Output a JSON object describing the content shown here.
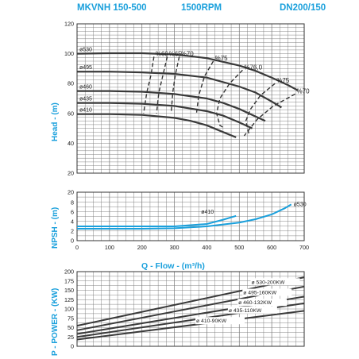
{
  "header": {
    "model": "MKVNH 150-500",
    "speed": "1500RPM",
    "size": "DN200/150"
  },
  "axis_titles": {
    "head": "Head - (m)",
    "npsh": "NPSH - (m)",
    "power": "P - POWER - (KW)",
    "flow": "Q - Flow - (m³/h)"
  },
  "colors": {
    "curve": "#3a3a3a",
    "npsh": "#1aa0dc",
    "title": "#1aa0dc",
    "grid": "#777777"
  },
  "chart_data": [
    {
      "type": "line",
      "panel": "head",
      "xlim": [
        0,
        700
      ],
      "ylim": [
        20,
        120
      ],
      "yticks": [
        20,
        40,
        60,
        80,
        100,
        120
      ],
      "grid": true,
      "series": [
        {
          "name": "ø530",
          "x": [
            0,
            100,
            200,
            300,
            400,
            500,
            550,
            600,
            650,
            680
          ],
          "y": [
            100,
            100.3,
            100.3,
            99.5,
            97,
            92,
            88.5,
            84,
            79,
            75.5
          ]
        },
        {
          "name": "ø495",
          "x": [
            0,
            100,
            200,
            300,
            400,
            500,
            550,
            600,
            630
          ],
          "y": [
            88,
            88,
            87.5,
            86.5,
            84,
            78,
            74,
            68,
            64
          ]
        },
        {
          "name": "ø460",
          "x": [
            0,
            100,
            200,
            300,
            400,
            450,
            500,
            550,
            580
          ],
          "y": [
            75,
            75,
            74.5,
            73,
            70,
            67,
            63,
            58,
            55
          ]
        },
        {
          "name": "ø435",
          "x": [
            0,
            100,
            200,
            300,
            400,
            450,
            500,
            540
          ],
          "y": [
            67,
            67,
            66.5,
            65,
            61.5,
            58.5,
            54,
            50
          ]
        },
        {
          "name": "ø410",
          "x": [
            0,
            100,
            200,
            300,
            350,
            400,
            450,
            490
          ],
          "y": [
            59.5,
            59.5,
            59,
            57,
            55,
            52,
            47.5,
            44
          ]
        }
      ],
      "efficiency_lines": [
        {
          "label": "%60",
          "x": [
            237,
            228,
            215,
            205
          ],
          "y": [
            98,
            86,
            74,
            60
          ]
        },
        {
          "label": "%65",
          "x": [
            278,
            265,
            252,
            245
          ],
          "y": [
            98,
            86,
            74,
            60
          ]
        },
        {
          "label": "%70",
          "x": [
            315,
            303,
            295,
            290
          ],
          "y": [
            98,
            86,
            74,
            60
          ]
        },
        {
          "label": "%75",
          "x": [
            420,
            393,
            375,
            368
          ],
          "y": [
            95,
            85,
            72,
            60
          ]
        },
        {
          "label": "%76,0",
          "x": [
            510,
            470,
            440,
            430,
            440,
            455
          ],
          "y": [
            89,
            80,
            70,
            60,
            52,
            50
          ]
        },
        {
          "label": "%75",
          "x": [
            610,
            565,
            535,
            520,
            530
          ],
          "y": [
            80,
            72,
            63,
            55,
            46
          ]
        },
        {
          "label": "%70",
          "x": [
            672,
            605,
            555,
            515
          ],
          "y": [
            73,
            65,
            56,
            45
          ]
        }
      ]
    },
    {
      "type": "line",
      "panel": "npsh",
      "xlim": [
        0,
        700
      ],
      "ylim": [
        0,
        20
      ],
      "yticks": [
        0,
        2,
        4,
        6,
        8,
        20
      ],
      "xticks": [
        0,
        100,
        200,
        300,
        400,
        500,
        600,
        700
      ],
      "grid": true,
      "series": [
        {
          "name": "ø410",
          "x": [
            0,
            100,
            200,
            300,
            400,
            450,
            490
          ],
          "y": [
            3,
            3,
            3,
            3,
            3.5,
            4.4,
            5.2
          ]
        },
        {
          "name": "ø530",
          "x": [
            0,
            100,
            200,
            300,
            400,
            500,
            550,
            600,
            640,
            660
          ],
          "y": [
            2.5,
            2.5,
            2.5,
            2.6,
            3,
            3.8,
            4.5,
            5.5,
            6.8,
            7.6
          ]
        }
      ]
    },
    {
      "type": "line",
      "panel": "power",
      "xlim": [
        0,
        700
      ],
      "ylim": [
        0,
        200
      ],
      "yticks": [
        0,
        25,
        50,
        75,
        100,
        125,
        150,
        175,
        200
      ],
      "grid": true,
      "series": [
        {
          "name": "ø 530-200KW",
          "x": [
            0,
            700
          ],
          "y": [
            55,
            185
          ]
        },
        {
          "name": "ø 495-160KW",
          "x": [
            0,
            700
          ],
          "y": [
            43,
            160
          ]
        },
        {
          "name": "ø 460-132KW",
          "x": [
            0,
            700
          ],
          "y": [
            33,
            133
          ]
        },
        {
          "name": "ø 435-110KW",
          "x": [
            0,
            700
          ],
          "y": [
            25,
            115
          ]
        },
        {
          "name": "ø 410-90KW",
          "x": [
            0,
            700
          ],
          "y": [
            18,
            95
          ]
        }
      ]
    }
  ]
}
